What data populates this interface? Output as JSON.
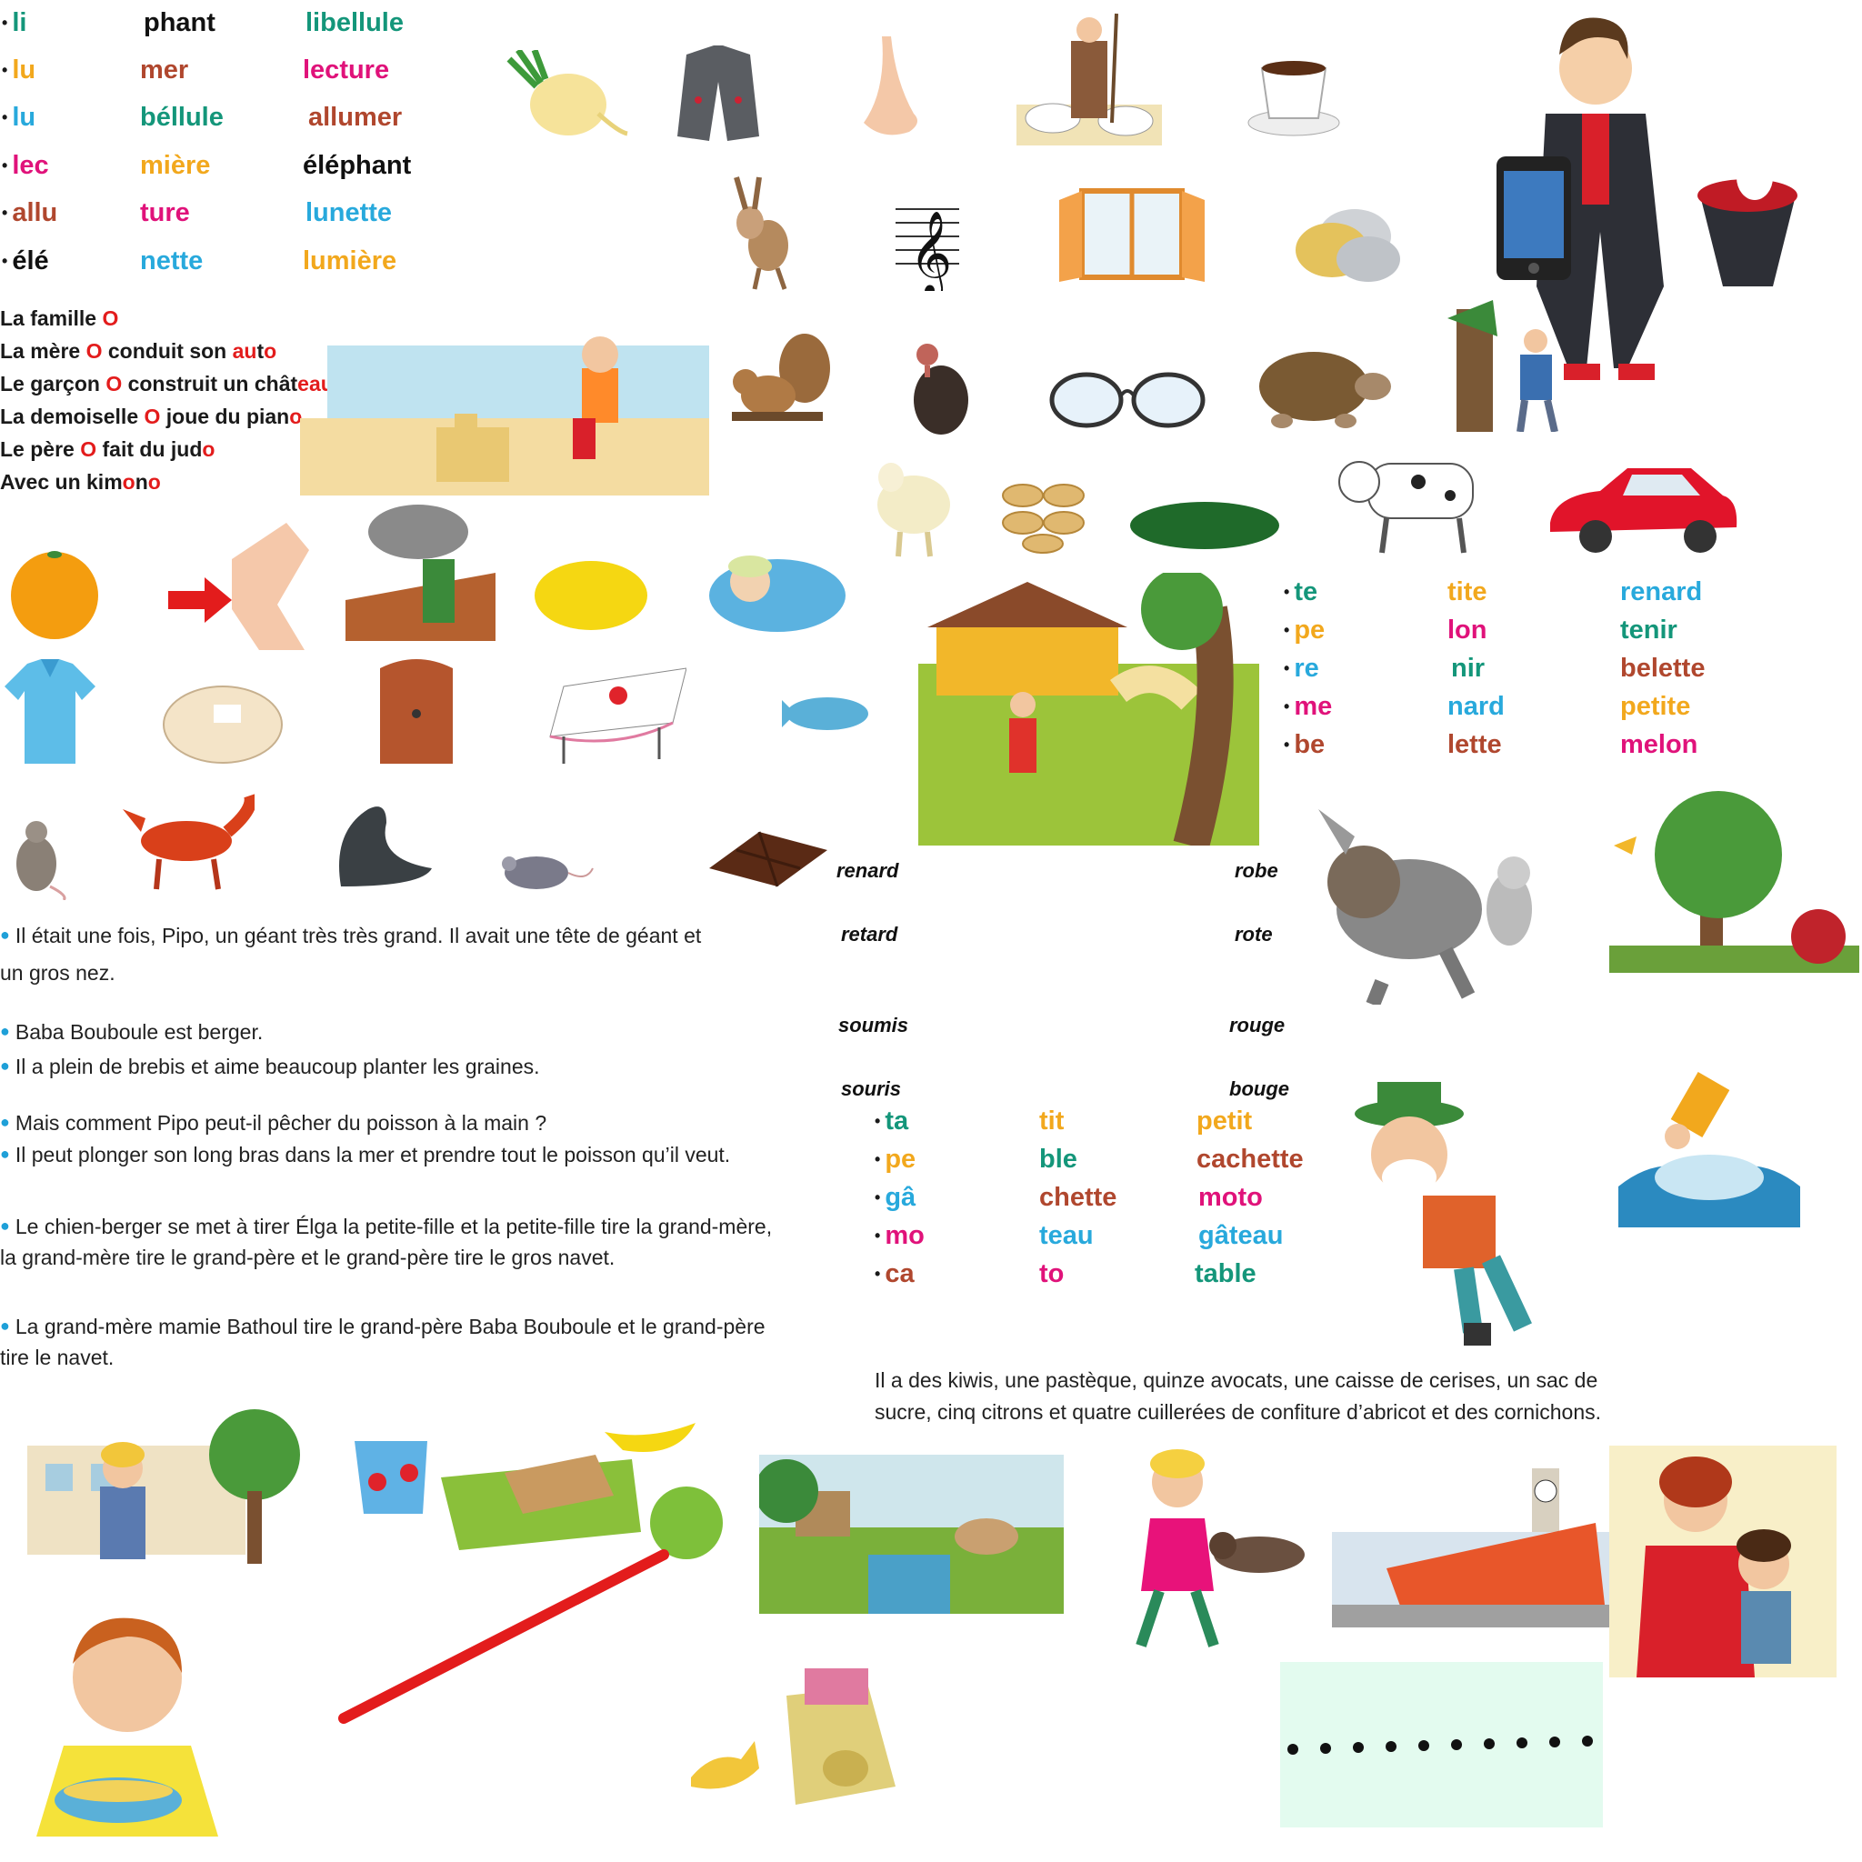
{
  "syllables_top": {
    "col1": [
      {
        "text": "li",
        "color": "#14967a"
      },
      {
        "text": "lu",
        "color": "#f2a81d"
      },
      {
        "text": "lu",
        "color": "#28a9dc"
      },
      {
        "text": "lec",
        "color": "#e0127a"
      },
      {
        "text": "allu",
        "color": "#b0472e"
      },
      {
        "text": "élé",
        "color": "#111111"
      }
    ],
    "col2": [
      {
        "text": "phant",
        "color": "#111111"
      },
      {
        "text": "mer",
        "color": "#b0472e"
      },
      {
        "text": "béllule",
        "color": "#14967a"
      },
      {
        "text": "mière",
        "color": "#f2a81d"
      },
      {
        "text": "ture",
        "color": "#e0127a"
      },
      {
        "text": "nette",
        "color": "#28a9dc"
      }
    ],
    "col3": [
      {
        "text": "libellule",
        "color": "#14967a"
      },
      {
        "text": "lecture",
        "color": "#e0127a"
      },
      {
        "text": "allumer",
        "color": "#b0472e"
      },
      {
        "text": "éléphant",
        "color": "#111111"
      },
      {
        "text": "lunette",
        "color": "#28a9dc"
      },
      {
        "text": "lumière",
        "color": "#f2a81d"
      }
    ]
  },
  "famille_o": {
    "l1": {
      "a": "La famille ",
      "b": "O",
      "c": ""
    },
    "l2": {
      "a": "La mère ",
      "b": "O",
      "c": " conduit son ",
      "d": "au",
      "e": "t",
      "f": "o"
    },
    "l3": {
      "a": "Le garçon ",
      "b": "O",
      "c": " construit un chât",
      "d": "eau"
    },
    "l4": {
      "a": "La demoiselle ",
      "b": "O",
      "c": " joue du pian",
      "d": "o"
    },
    "l5": {
      "a": "Le père ",
      "b": "O",
      "c": " fait du jud",
      "d": "o"
    },
    "l6": {
      "a": "Avec un kim",
      "b": "o",
      "c": "n",
      "d": "o"
    }
  },
  "syllables_mid": {
    "col1": [
      {
        "text": "te",
        "color": "#14967a"
      },
      {
        "text": "pe",
        "color": "#f2a81d"
      },
      {
        "text": "re",
        "color": "#28a9dc"
      },
      {
        "text": "me",
        "color": "#e0127a"
      },
      {
        "text": "be",
        "color": "#b0472e"
      }
    ],
    "col2": [
      {
        "text": "tite",
        "color": "#f2a81d"
      },
      {
        "text": "lon",
        "color": "#e0127a"
      },
      {
        "text": "nir",
        "color": "#14967a"
      },
      {
        "text": "nard",
        "color": "#28a9dc"
      },
      {
        "text": "lette",
        "color": "#b0472e"
      }
    ],
    "col3": [
      {
        "text": "renard",
        "color": "#28a9dc"
      },
      {
        "text": "tenir",
        "color": "#14967a"
      },
      {
        "text": "belette",
        "color": "#b0472e"
      },
      {
        "text": "petite",
        "color": "#f2a81d"
      },
      {
        "text": "melon",
        "color": "#e0127a"
      }
    ]
  },
  "paired_words": {
    "left": [
      "renard",
      "retard",
      "soumis",
      "souris"
    ],
    "right": [
      "robe",
      "rote",
      "rouge",
      "bouge"
    ]
  },
  "syllables_bottom": {
    "col1": [
      {
        "text": "ta",
        "color": "#14967a"
      },
      {
        "text": "pe",
        "color": "#f2a81d"
      },
      {
        "text": "gâ",
        "color": "#28a9dc"
      },
      {
        "text": "mo",
        "color": "#e0127a"
      },
      {
        "text": "ca",
        "color": "#b0472e"
      }
    ],
    "col2": [
      {
        "text": "tit",
        "color": "#f2a81d"
      },
      {
        "text": "ble",
        "color": "#14967a"
      },
      {
        "text": "chette",
        "color": "#b0472e"
      },
      {
        "text": "teau",
        "color": "#28a9dc"
      },
      {
        "text": "to",
        "color": "#e0127a"
      }
    ],
    "col3": [
      {
        "text": "petit",
        "color": "#f2a81d"
      },
      {
        "text": "cachette",
        "color": "#b0472e"
      },
      {
        "text": "moto",
        "color": "#e0127a"
      },
      {
        "text": "gâteau",
        "color": "#28a9dc"
      },
      {
        "text": "table",
        "color": "#14967a"
      }
    ]
  },
  "story": {
    "p1": "Il était une fois, Pipo, un géant très très grand. Il avait une tête de géant et",
    "p1b": "un gros nez.",
    "p2": "Baba Bouboule est berger.",
    "p3": "Il a plein de brebis et aime beaucoup planter les graines.",
    "p4": "Mais comment Pipo peut-il pêcher du poisson à la main ?",
    "p5": "Il peut plonger son long bras dans la mer et prendre tout le poisson qu’il veut.",
    "p6": "Le chien-berger se met à tirer Élga la petite-fille et la petite-fille tire la grand-mère,",
    "p6b": "la grand-mère tire le grand-père et le grand-père tire le gros navet.",
    "p7": "La grand-mère mamie Bathoul tire le grand-père Baba Bouboule et le grand-père",
    "p7b": "tire le navet."
  },
  "shopping": {
    "l1": "Il a des kiwis, une pastèque, quinze avocats, une caisse de cerises, un sac de",
    "l2": "sucre, cinq citrons et quatre cuillerées de confiture d’abricot et des cornichons."
  },
  "colors": {
    "accent_red": "#e31c1c",
    "bullet_blue": "#1fa0d8",
    "dots_panel": "#e3fbef"
  }
}
